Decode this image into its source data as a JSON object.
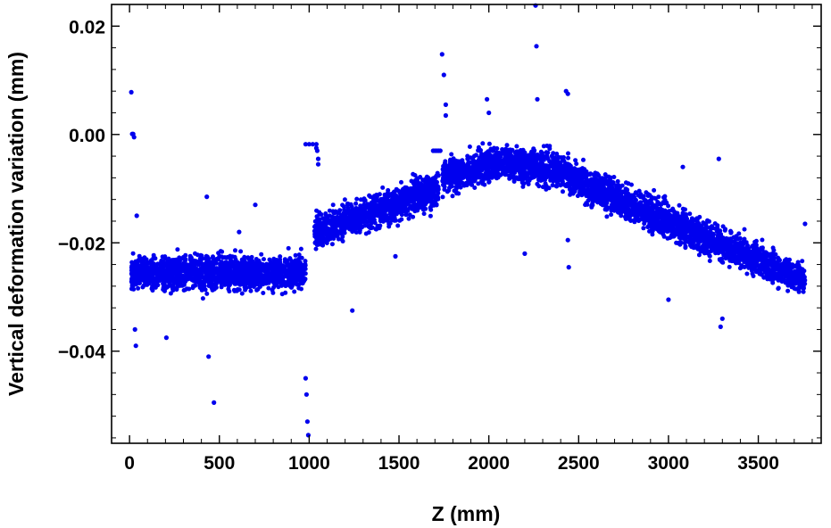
{
  "chart_data": {
    "type": "scatter",
    "title": "",
    "xlabel": "Z (mm)",
    "ylabel": "Vertical deformation variation (mm)",
    "xlim": [
      -100,
      3850
    ],
    "ylim": [
      -0.057,
      0.024
    ],
    "x_ticks": [
      0,
      500,
      1000,
      1500,
      2000,
      2500,
      3000,
      3500
    ],
    "x_tick_labels": [
      "0",
      "500",
      "1000",
      "1500",
      "2000",
      "2500",
      "3000",
      "3500"
    ],
    "y_ticks": [
      0.02,
      0.0,
      -0.02,
      -0.04
    ],
    "y_tick_labels": [
      "0.02",
      "0.00",
      "−0.02",
      "−0.04"
    ],
    "grid": false,
    "legend": "none",
    "series": [
      {
        "color": "#0000ee",
        "segments": [
          {
            "x": [
              10,
              980
            ],
            "trend_y": [
              -0.0255,
              -0.0255
            ],
            "spread": 0.0025
          },
          {
            "x": [
              1030,
              1720
            ],
            "trend_y": [
              -0.018,
              -0.01
            ],
            "spread": 0.0025
          },
          {
            "x": [
              1740,
              2050
            ],
            "trend_y": [
              -0.008,
              -0.005
            ],
            "spread": 0.0025
          },
          {
            "x": [
              2050,
              2450
            ],
            "trend_y": [
              -0.005,
              -0.007
            ],
            "spread": 0.0025
          },
          {
            "x": [
              2450,
              3760
            ],
            "trend_y": [
              -0.008,
              -0.027
            ],
            "spread": 0.0025
          }
        ],
        "points": [
          [
            10,
            0.0078
          ],
          [
            15,
            0.0001
          ],
          [
            20,
            0.0001
          ],
          [
            25,
            -0.0005
          ],
          [
            30,
            -0.036
          ],
          [
            35,
            -0.039
          ],
          [
            40,
            -0.015
          ],
          [
            205,
            -0.0375
          ],
          [
            430,
            -0.0115
          ],
          [
            440,
            -0.041
          ],
          [
            470,
            -0.0495
          ],
          [
            610,
            -0.018
          ],
          [
            700,
            -0.013
          ],
          [
            980,
            -0.045
          ],
          [
            985,
            -0.048
          ],
          [
            990,
            -0.053
          ],
          [
            995,
            -0.0555
          ],
          [
            980,
            -0.0018
          ],
          [
            1000,
            -0.0018
          ],
          [
            1020,
            -0.0018
          ],
          [
            1040,
            -0.0018
          ],
          [
            1040,
            -0.0025
          ],
          [
            1045,
            -0.003
          ],
          [
            1050,
            -0.0045
          ],
          [
            1050,
            -0.0055
          ],
          [
            1240,
            -0.0325
          ],
          [
            1480,
            -0.0225
          ],
          [
            1690,
            -0.003
          ],
          [
            1700,
            -0.003
          ],
          [
            1710,
            -0.003
          ],
          [
            1720,
            -0.003
          ],
          [
            1730,
            -0.003
          ],
          [
            1740,
            0.0148
          ],
          [
            1750,
            0.011
          ],
          [
            1760,
            0.0055
          ],
          [
            1760,
            0.0035
          ],
          [
            1990,
            0.0065
          ],
          [
            2000,
            0.004
          ],
          [
            2260,
            0.0238
          ],
          [
            2265,
            0.0163
          ],
          [
            2270,
            0.0065
          ],
          [
            2430,
            0.008
          ],
          [
            2440,
            0.0075
          ],
          [
            2440,
            -0.0195
          ],
          [
            2445,
            -0.0245
          ],
          [
            2200,
            -0.022
          ],
          [
            3000,
            -0.0305
          ],
          [
            3080,
            -0.006
          ],
          [
            3280,
            -0.0045
          ],
          [
            3290,
            -0.0355
          ],
          [
            3300,
            -0.034
          ],
          [
            3760,
            -0.0165
          ]
        ]
      }
    ]
  }
}
